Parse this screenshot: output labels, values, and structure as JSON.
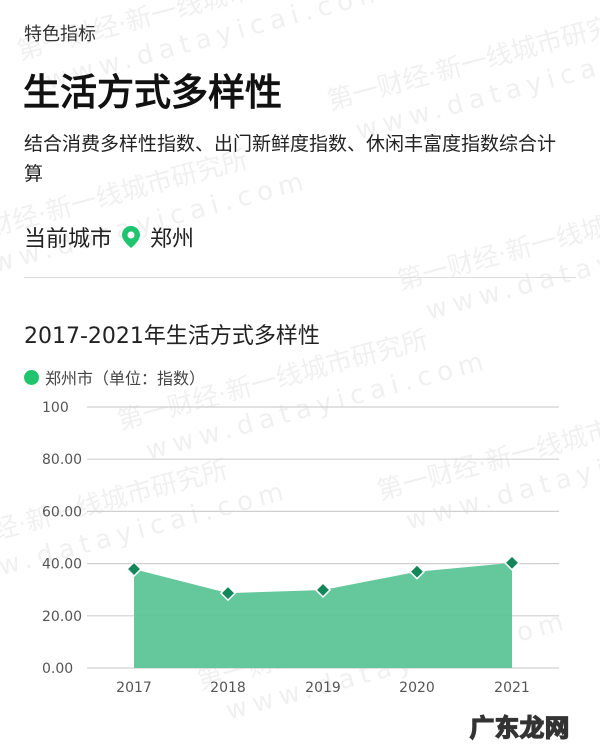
{
  "header": {
    "eyebrow": "特色指标",
    "title": "生活方式多样性",
    "description": "结合消费多样性指数、出门新鲜度指数、休闲丰富度指数综合计算"
  },
  "city": {
    "label": "当前城市",
    "icon": "location-pin-icon",
    "value": "郑州"
  },
  "colors": {
    "accent": "#1fc46e",
    "area": "#5cc597",
    "marker": "#13865a"
  },
  "watermark": {
    "line1": "第一财经·新一线城市研究所",
    "line2": "www.datayicai.com"
  },
  "logo": "广东龙网",
  "chart_data": {
    "type": "area",
    "title": "2017-2021年生活方式多样性",
    "legend": "郑州市（单位：指数）",
    "categories": [
      "2017",
      "2018",
      "2019",
      "2020",
      "2021"
    ],
    "series": [
      {
        "name": "郑州市",
        "values": [
          37.9,
          28.7,
          29.9,
          36.9,
          40.3
        ]
      }
    ],
    "ylim": [
      0,
      100
    ],
    "yticks": [
      "0.00",
      "20.00",
      "40.00",
      "60.00",
      "80.00",
      "100"
    ],
    "grid": true,
    "legend_placement": "top-left"
  }
}
